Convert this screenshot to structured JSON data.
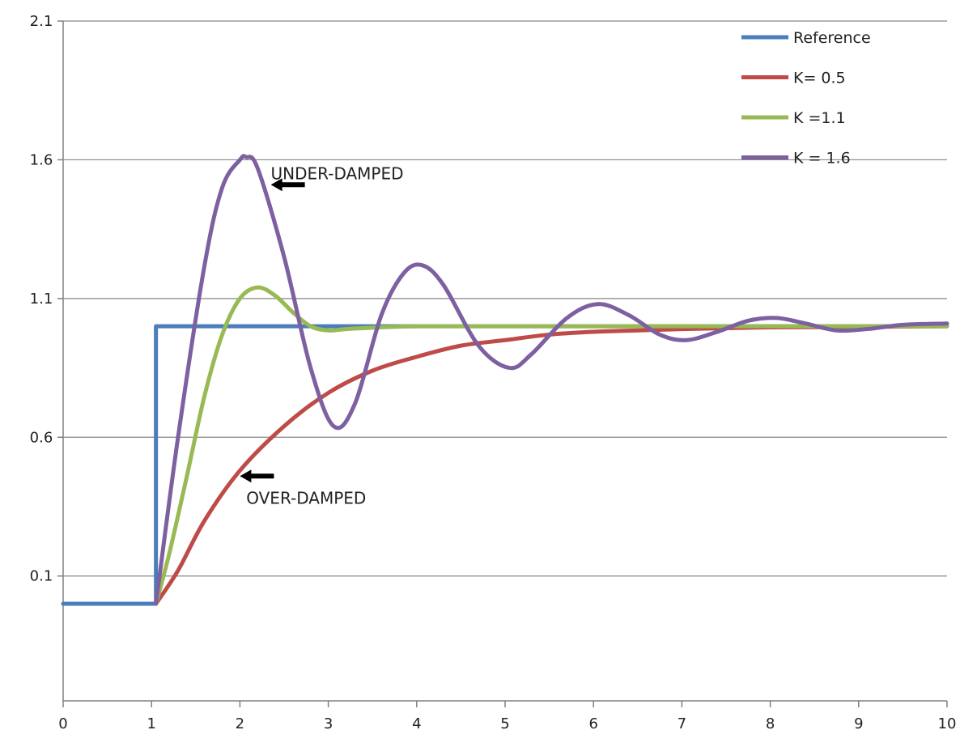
{
  "chart_data": {
    "type": "line",
    "xlim": [
      0,
      10
    ],
    "ylim": [
      -0.35,
      2.1
    ],
    "x_ticks": [
      0,
      1,
      2,
      3,
      4,
      5,
      6,
      7,
      8,
      9,
      10
    ],
    "x_tick_labels": [
      "0",
      "1",
      "2",
      "3",
      "4",
      "5",
      "6",
      "7",
      "8",
      "9",
      "10"
    ],
    "y_ticks": [
      0.1,
      0.6,
      1.1,
      1.6,
      2.1
    ],
    "y_tick_labels": [
      "0.1",
      "0.6",
      "1.1",
      "1.6",
      "2.1"
    ],
    "grid": true,
    "legend_position": "top-right",
    "series": [
      {
        "name": "Reference",
        "color": "#4a7ebb",
        "x": [
          0,
          1.05,
          1.05,
          10
        ],
        "y": [
          0,
          0,
          1,
          1
        ]
      },
      {
        "name": "K= 0.5",
        "color": "#be4b48",
        "x": [
          1.05,
          1.3,
          1.6,
          2,
          2.5,
          3,
          3.5,
          4,
          4.5,
          5,
          5.5,
          6,
          6.5,
          7,
          7.5,
          8,
          9,
          10
        ],
        "y": [
          0,
          0.12,
          0.3,
          0.48,
          0.64,
          0.76,
          0.84,
          0.89,
          0.93,
          0.95,
          0.97,
          0.98,
          0.985,
          0.99,
          0.993,
          0.996,
          0.998,
          1
        ]
      },
      {
        "name": "K =1.1",
        "color": "#98b954",
        "x": [
          1.05,
          1.2,
          1.4,
          1.6,
          1.8,
          2,
          2.2,
          2.4,
          2.6,
          2.8,
          3,
          3.2,
          3.5,
          4,
          5,
          6,
          7,
          8,
          9,
          10
        ],
        "y": [
          0,
          0.18,
          0.46,
          0.75,
          0.97,
          1.1,
          1.14,
          1.11,
          1.05,
          1.0,
          0.985,
          0.99,
          0.995,
          1,
          1,
          1,
          1,
          1,
          1,
          1
        ]
      },
      {
        "name": "K = 1.6",
        "color": "#7d60a0",
        "x": [
          1.05,
          1.3,
          1.6,
          1.8,
          2,
          2.07,
          2.2,
          2.5,
          2.8,
          3.06,
          3.3,
          3.6,
          3.85,
          4.06,
          4.3,
          4.7,
          5.05,
          5.3,
          5.7,
          6.05,
          6.4,
          6.75,
          7.05,
          7.4,
          7.75,
          8.07,
          8.4,
          8.75,
          9.1,
          9.5,
          10
        ],
        "y": [
          0,
          0.6,
          1.22,
          1.5,
          1.6,
          1.61,
          1.57,
          1.25,
          0.85,
          0.64,
          0.72,
          1.04,
          1.19,
          1.22,
          1.15,
          0.93,
          0.85,
          0.9,
          1.03,
          1.08,
          1.04,
          0.97,
          0.95,
          0.98,
          1.02,
          1.03,
          1.01,
          0.985,
          0.99,
          1.005,
          1.01
        ]
      }
    ],
    "annotations": [
      {
        "text": "UNDER-DAMPED",
        "x": 3.1,
        "y": 1.55,
        "arrow_tip_x": 2.35,
        "arrow_tip_y": 1.51
      },
      {
        "text": "OVER-DAMPED",
        "x": 2.75,
        "y": 0.38,
        "arrow_tip_x": 2.0,
        "arrow_tip_y": 0.46
      }
    ],
    "axis_color": "#808080",
    "grid_color": "#868686"
  }
}
